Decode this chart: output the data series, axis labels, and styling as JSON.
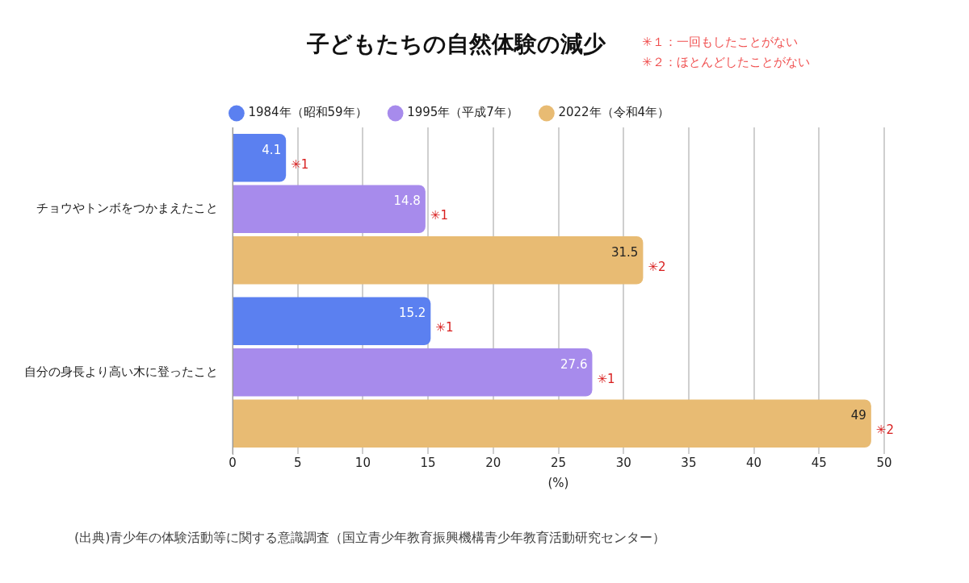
{
  "chart_data": {
    "type": "bar",
    "orientation": "horizontal",
    "title": "子どもたちの自然体験の減少",
    "xlabel": "(%)",
    "annotations": [
      "✳１：一回もしたことがない",
      "✳２：ほとんどしたことがない",
      "(出典)青少年の体験活動等に関する意識調査（国立青少年教育振興機構青少年教育活動研究センター）"
    ],
    "categories": [
      "チョウやトンボをつかまえたこと",
      "自分の身長より高い木に登ったこと"
    ],
    "series": [
      {
        "name": "1984年（昭和59年）",
        "color": "#5b80f0",
        "values": [
          4.1,
          15.2
        ],
        "value_labels": [
          "4.1\n✳1",
          "15.2\n✳1"
        ]
      },
      {
        "name": "1995年（平成7年）",
        "color": "#a78bec",
        "values": [
          14.8,
          27.6
        ],
        "value_labels": [
          "14.8\n✳1",
          "27.6\n✳1"
        ]
      },
      {
        "name": "2022年（令和4年）",
        "color": "#e8bb73",
        "values": [
          31.5,
          49
        ],
        "value_labels": [
          "31.5\n✳2",
          "49\n✳2"
        ]
      }
    ],
    "xlim": [
      0,
      50
    ],
    "xticks": [
      0,
      5,
      10,
      15,
      20,
      25,
      30,
      35,
      40,
      45,
      50
    ],
    "grid": "x",
    "legend": "top"
  }
}
